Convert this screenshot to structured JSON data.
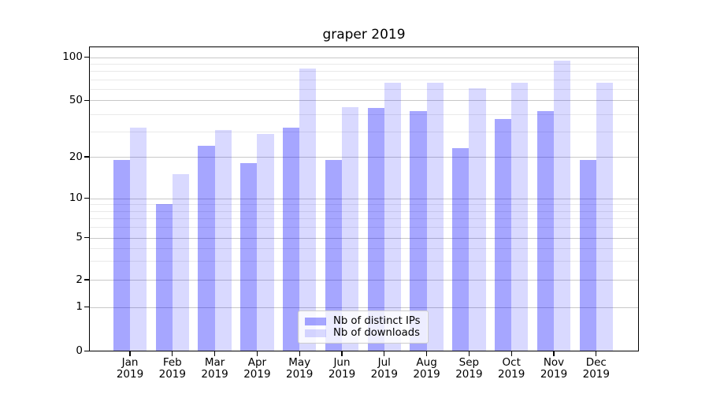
{
  "title": "graper 2019",
  "chart_data": {
    "type": "bar",
    "title": "graper 2019",
    "categories": [
      "Jan 2019",
      "Feb 2019",
      "Mar 2019",
      "Apr 2019",
      "May 2019",
      "Jun 2019",
      "Jul 2019",
      "Aug 2019",
      "Sep 2019",
      "Oct 2019",
      "Nov 2019",
      "Dec 2019"
    ],
    "series": [
      {
        "name": "Nb of distinct IPs",
        "color": "rgba(0,0,255,0.35)",
        "values": [
          19,
          9,
          24,
          18,
          32,
          19,
          44,
          42,
          23,
          37,
          42,
          19
        ]
      },
      {
        "name": "Nb of downloads",
        "color": "rgba(0,0,255,0.15)",
        "values": [
          32,
          15,
          31,
          29,
          83,
          45,
          66,
          66,
          61,
          66,
          94,
          66
        ]
      }
    ],
    "yscale": "symlog",
    "ylim": [
      0,
      118
    ],
    "yticks": [
      0,
      1,
      2,
      5,
      10,
      20,
      50,
      100
    ],
    "yticks_minor": [
      3,
      4,
      6,
      7,
      8,
      9,
      30,
      40,
      60,
      70,
      80,
      90
    ],
    "grid": true,
    "legend_position": "lower center"
  }
}
